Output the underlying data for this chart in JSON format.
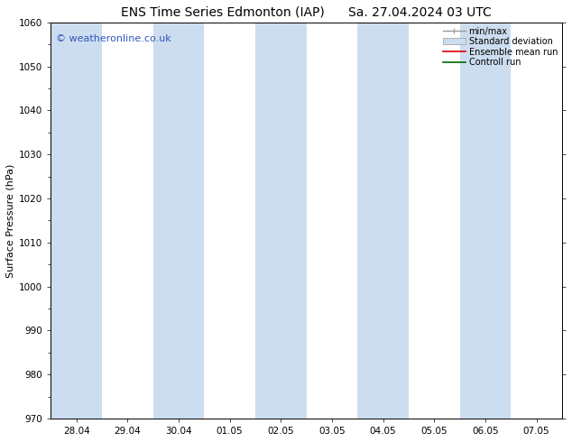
{
  "title_left": "ENS Time Series Edmonton (IAP)",
  "title_right": "Sa. 27.04.2024 03 UTC",
  "ylabel": "Surface Pressure (hPa)",
  "ylim": [
    970,
    1060
  ],
  "yticks": [
    970,
    980,
    990,
    1000,
    1010,
    1020,
    1030,
    1040,
    1050,
    1060
  ],
  "xlabels": [
    "28.04",
    "29.04",
    "30.04",
    "01.05",
    "02.05",
    "03.05",
    "04.05",
    "05.05",
    "06.05",
    "07.05"
  ],
  "band_color": "#ccddef",
  "bg_color": "#ffffff",
  "copyright_text": "© weatheronline.co.uk",
  "copyright_color": "#3355bb",
  "legend_entries": [
    "min/max",
    "Standard deviation",
    "Ensemble mean run",
    "Controll run"
  ],
  "legend_line_color": "#999999",
  "legend_fill_color": "#ccddee",
  "legend_red": "#dd0000",
  "legend_green": "#006600",
  "title_fontsize": 10,
  "tick_fontsize": 7.5,
  "ylabel_fontsize": 8,
  "copyright_fontsize": 8,
  "legend_fontsize": 7,
  "shaded_odd": false
}
